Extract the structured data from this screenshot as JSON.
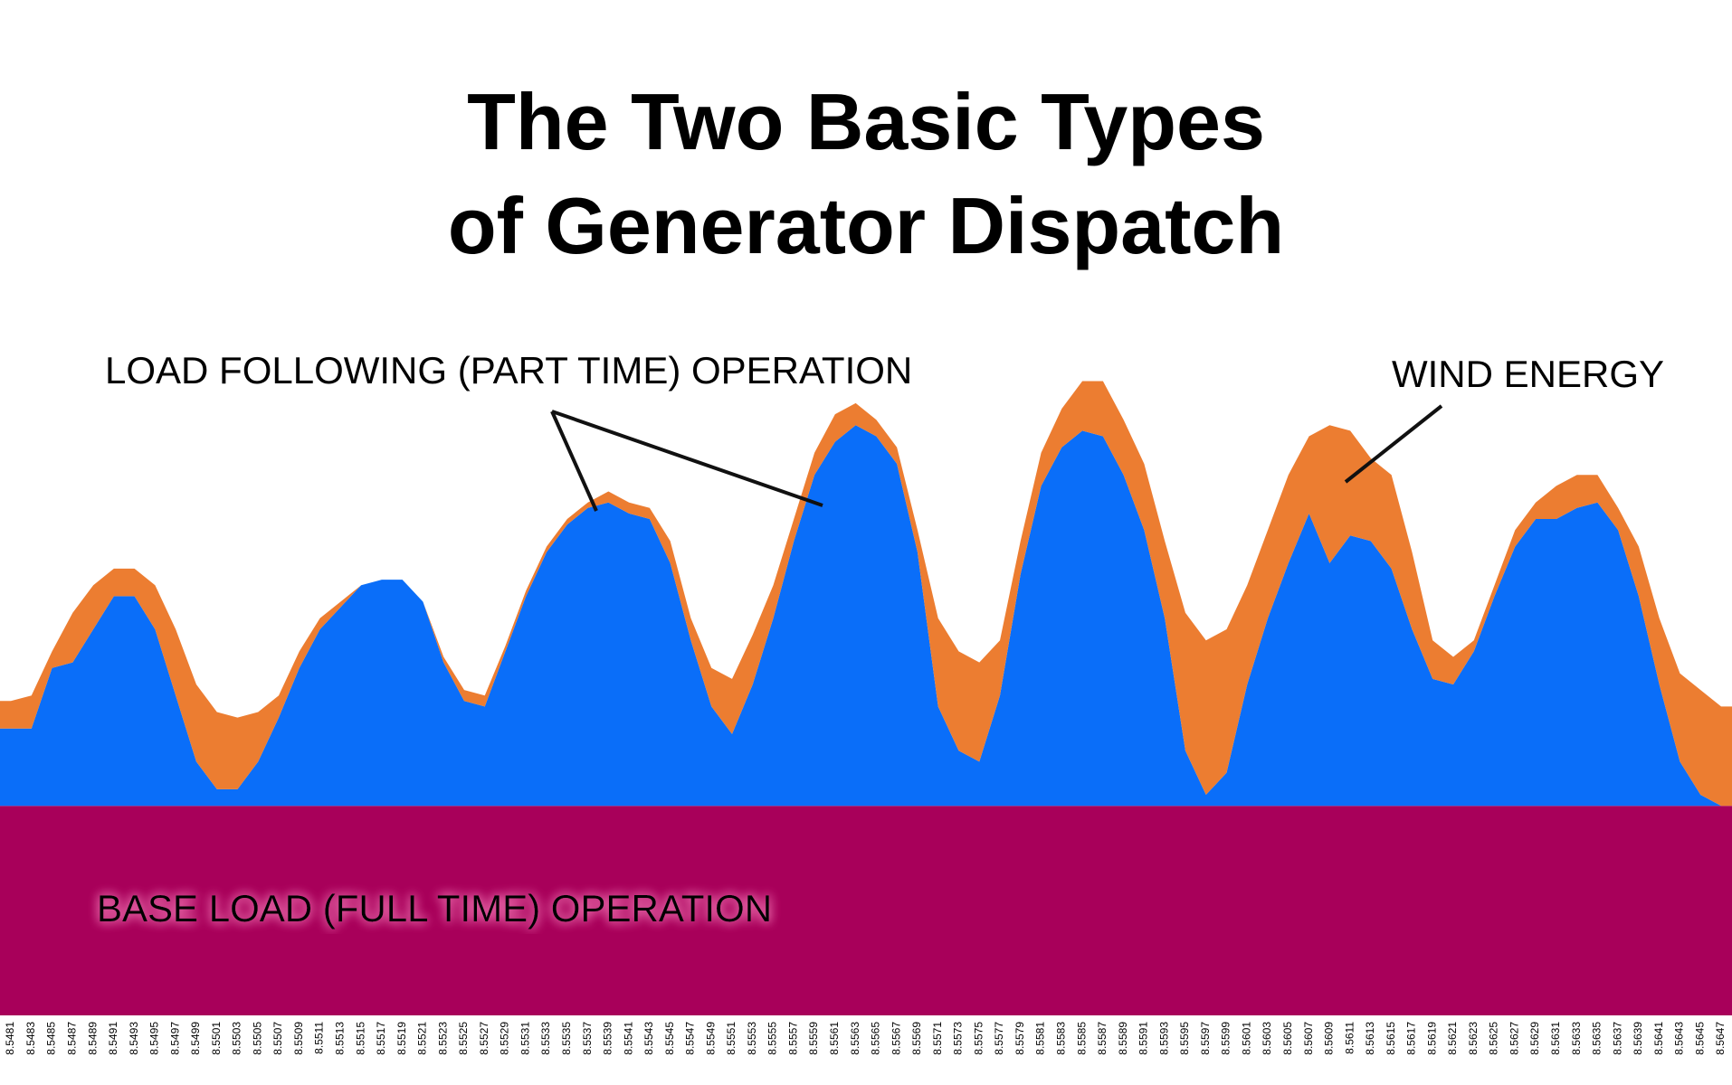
{
  "chart_data": {
    "type": "stacked-area",
    "title": [
      "The Two Basic Types",
      "of Generator Dispatch"
    ],
    "categories": [
      "8.5481",
      "8.5483",
      "8.5485",
      "8.5487",
      "8.5489",
      "8.5491",
      "8.5493",
      "8.5495",
      "8.5497",
      "8.5499",
      "8.5501",
      "8.5503",
      "8.5505",
      "8.5507",
      "8.5509",
      "8.5511",
      "8.5513",
      "8.5515",
      "8.5517",
      "8.5519",
      "8.5521",
      "8.5523",
      "8.5525",
      "8.5527",
      "8.5529",
      "8.5531",
      "8.5533",
      "8.5535",
      "8.5537",
      "8.5539",
      "8.5541",
      "8.5543",
      "8.5545",
      "8.5547",
      "8.5549",
      "8.5551",
      "8.5553",
      "8.5555",
      "8.5557",
      "8.5559",
      "8.5561",
      "8.5563",
      "8.5565",
      "8.5567",
      "8.5569",
      "8.5571",
      "8.5573",
      "8.5575",
      "8.5577",
      "8.5579",
      "8.5581",
      "8.5583",
      "8.5585",
      "8.5587",
      "8.5589",
      "8.5591",
      "8.5593",
      "8.5595",
      "8.5597",
      "8.5599",
      "8.5601",
      "8.5603",
      "8.5605",
      "8.5607",
      "8.5609",
      "8.5611",
      "8.5613",
      "8.5615",
      "8.5617",
      "8.5619",
      "8.5621",
      "8.5623",
      "8.5625",
      "8.5627",
      "8.5629",
      "8.5631",
      "8.5633",
      "8.5635",
      "8.5637",
      "8.5639",
      "8.5641",
      "8.5643",
      "8.5645",
      "8.5647"
    ],
    "series": [
      {
        "name": "BASE LOAD (FULL TIME) OPERATION",
        "color": "#a8005a",
        "values": [
          38,
          38,
          38,
          38,
          38,
          38,
          38,
          38,
          38,
          38,
          38,
          38,
          38,
          38,
          38,
          38,
          38,
          38,
          38,
          38,
          38,
          38,
          38,
          38,
          38,
          38,
          38,
          38,
          38,
          38,
          38,
          38,
          38,
          38,
          38,
          38,
          38,
          38,
          38,
          38,
          38,
          38,
          38,
          38,
          38,
          38,
          38,
          38,
          38,
          38,
          38,
          38,
          38,
          38,
          38,
          38,
          38,
          38,
          38,
          38,
          38,
          38,
          38,
          38,
          38,
          38,
          38,
          38,
          38,
          38,
          38,
          38,
          38,
          38,
          38,
          38,
          38,
          38,
          38,
          38,
          38,
          38,
          38,
          38
        ]
      },
      {
        "name": "LOAD FOLLOWING (PART TIME) OPERATION",
        "color": "#0a6ef9",
        "values": [
          14,
          14,
          25,
          26,
          32,
          38,
          38,
          32,
          20,
          8,
          3,
          3,
          8,
          16,
          25,
          32,
          36,
          40,
          41,
          41,
          37,
          26,
          19,
          18,
          28,
          38,
          46,
          51,
          54,
          55,
          53,
          52,
          44,
          30,
          18,
          13,
          22,
          34,
          48,
          60,
          66,
          69,
          67,
          62,
          46,
          18,
          10,
          8,
          20,
          42,
          58,
          65,
          68,
          67,
          60,
          50,
          34,
          10,
          2,
          6,
          22,
          34,
          44,
          53,
          44,
          49,
          48,
          43,
          32,
          23,
          22,
          28,
          38,
          47,
          52,
          52,
          54,
          55,
          50,
          38,
          22,
          8,
          2,
          0
        ]
      },
      {
        "name": "WIND ENERGY",
        "color": "#ec7d31",
        "values": [
          5,
          6,
          3,
          9,
          8,
          5,
          5,
          8,
          12,
          14,
          14,
          13,
          9,
          4,
          3,
          2,
          1,
          0,
          0,
          0,
          0,
          1,
          2,
          2,
          1,
          1,
          1,
          1,
          1,
          2,
          2,
          2,
          4,
          4,
          7,
          10,
          9,
          6,
          4,
          4,
          5,
          4,
          3,
          3,
          4,
          16,
          18,
          18,
          10,
          6,
          6,
          7,
          9,
          10,
          10,
          12,
          14,
          25,
          28,
          26,
          18,
          16,
          16,
          14,
          25,
          19,
          15,
          17,
          14,
          7,
          5,
          2,
          2,
          3,
          3,
          6,
          6,
          5,
          4,
          9,
          12,
          16,
          19,
          18
        ]
      }
    ],
    "ylim": [
      0,
      130
    ]
  }
}
